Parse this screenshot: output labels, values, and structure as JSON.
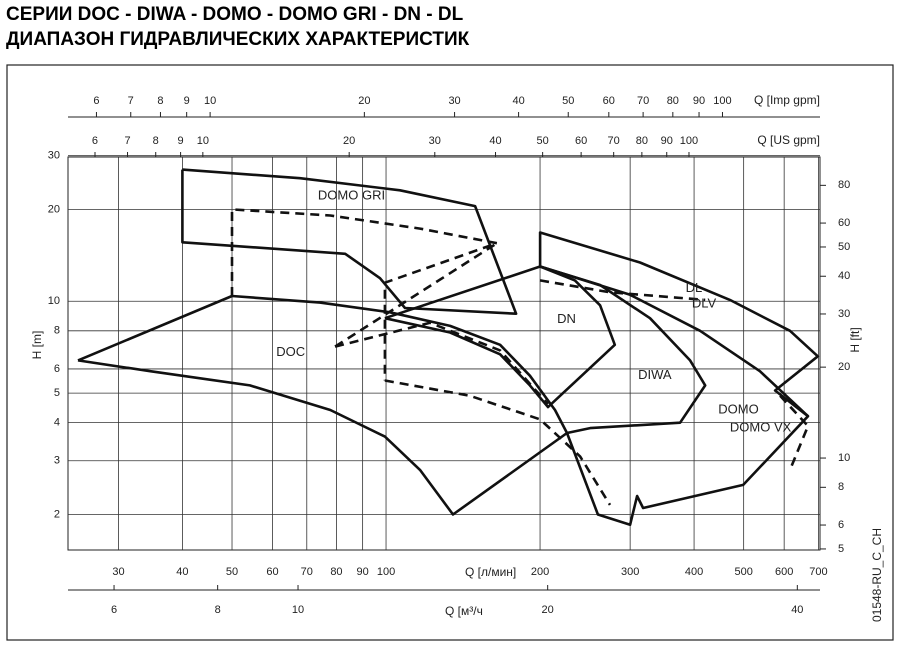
{
  "chart_data": {
    "type": "line",
    "title": "СЕРИИ DOC - DIWA - DOMO - DOMO GRI - DN - DL",
    "subtitle": "ДИАПАЗОН ГИДРАВЛИЧЕСКИХ ХАРАКТЕРИСТИК",
    "xlabel": "Q [л/мин]",
    "ylabel": "H [m]",
    "y2label": "H [ft]",
    "code": "01548-RU_C_CH",
    "log_x": true,
    "log_y": true,
    "grid": true,
    "color": "#111111",
    "xlim": [
      23.9,
      705
    ],
    "xticks": [
      30,
      40,
      50,
      60,
      70,
      80,
      90,
      100,
      200,
      300,
      400,
      500,
      600,
      700
    ],
    "ylim": [
      1.53,
      29.7
    ],
    "yticks": [
      2,
      3,
      4,
      5,
      6,
      8,
      10,
      20,
      30
    ],
    "y2lim": [
      4.96,
      99.3
    ],
    "y2ticks": [
      5,
      6,
      8,
      10,
      20,
      30,
      40,
      50,
      60,
      80
    ],
    "secondary_x_axes": [
      {
        "label": "Q [м³/ч",
        "position": "bottom",
        "xlim": [
          5.28,
          42.6
        ],
        "xticks": [
          6,
          8,
          10,
          20,
          40
        ]
      },
      {
        "label": "Q [US gpm]",
        "position": "top",
        "xlim": [
          5.28,
          186
        ],
        "xticks": [
          6,
          7,
          8,
          9,
          10,
          20,
          30,
          40,
          50,
          60,
          70,
          80,
          90,
          100
        ]
      },
      {
        "label": "Q [Imp gpm]",
        "position": "top",
        "xlim": [
          5.28,
          155
        ],
        "xticks": [
          6,
          7,
          8,
          9,
          10,
          20,
          30,
          40,
          50,
          60,
          70,
          80,
          90,
          100
        ]
      }
    ],
    "series": [
      {
        "style": "solid",
        "x": [
          40,
          67.9,
          106.5,
          149.3,
          179.6,
          108.9,
          97.3,
          83.2,
          40,
          40
        ],
        "values": [
          27.0,
          25.3,
          23.1,
          20.5,
          9.1,
          9.5,
          11.9,
          14.3,
          15.6,
          27.0
        ]
      },
      {
        "style": "solid",
        "x": [
          25.0,
          50,
          74.3,
          101.8,
          133.4,
          167.1,
          191.1,
          213.9,
          225.8,
          135.2,
          116.5,
          99.5,
          77.8,
          54.2,
          34.6,
          25.0
        ],
        "values": [
          6.4,
          10.4,
          9.9,
          9.2,
          8.3,
          7.2,
          5.7,
          4.4,
          3.7,
          2.0,
          2.8,
          3.6,
          4.4,
          5.3,
          5.9,
          6.4
        ]
      },
      {
        "style": "solid",
        "x": [
          99.5,
          200,
          234,
          262,
          280,
          207.3,
          191.1,
          167.1,
          133.4,
          99.5
        ],
        "values": [
          8.8,
          13.0,
          11.7,
          9.7,
          7.2,
          4.5,
          5.3,
          6.7,
          7.9,
          8.8
        ]
      },
      {
        "style": "solid",
        "x": [
          200,
          262,
          328,
          393,
          420.5,
          375.6,
          250.5,
          225.8
        ],
        "values": [
          13.0,
          11.3,
          8.8,
          6.4,
          5.3,
          4.0,
          3.84,
          3.7
        ]
      },
      {
        "style": "solid",
        "x": [
          200,
          200,
          313.6,
          470,
          616,
          698,
          576,
          668,
          499,
          318,
          309.6,
          300,
          259.5,
          225.8
        ],
        "values": [
          13.0,
          16.8,
          13.4,
          10.1,
          8.0,
          6.6,
          5.1,
          4.2,
          2.5,
          2.1,
          2.3,
          1.85,
          2.0,
          3.7
        ]
      },
      {
        "style": "solid",
        "x": [
          200,
          300,
          411,
          538,
          668
        ],
        "values": [
          13.0,
          10.5,
          8.0,
          5.9,
          4.2
        ]
      },
      {
        "style": "dashed",
        "x": [
          50,
          50,
          77.8,
          116.5,
          164.8,
          99.5,
          99.5
        ],
        "values": [
          10.4,
          20,
          19.1,
          17.3,
          15.5,
          11.5,
          5.5
        ]
      },
      {
        "style": "dashed",
        "x": [
          79.5,
          164.8
        ],
        "values": [
          7.1,
          15.5
        ]
      },
      {
        "style": "dashed",
        "x": [
          79.5,
          121.9,
          167.1,
          207.3
        ],
        "values": [
          7.1,
          8.5,
          6.9,
          4.6
        ]
      },
      {
        "style": "dashed",
        "x": [
          99.5,
          145.9,
          200,
          239.5,
          274
        ],
        "values": [
          5.5,
          4.9,
          4.1,
          3.1,
          2.15
        ]
      },
      {
        "style": "dashed",
        "x": [
          200,
          274,
          420.5
        ],
        "values": [
          11.7,
          10.7,
          10.1
        ]
      },
      {
        "style": "dashed",
        "x": [
          589,
          668,
          616
        ],
        "values": [
          4.9,
          3.9,
          2.8
        ]
      }
    ],
    "annotations": [
      {
        "text": "DOMO GRI",
        "x": 73.6,
        "y": 22.1
      },
      {
        "text": "DOC",
        "x": 61.0,
        "y": 6.8
      },
      {
        "text": "DN",
        "x": 216,
        "y": 8.7
      },
      {
        "text": "DIWA",
        "x": 311,
        "y": 5.7
      },
      {
        "text": "DL",
        "x": 385,
        "y": 11.0
      },
      {
        "text": "DLV",
        "x": 396,
        "y": 9.8
      },
      {
        "text": "DOMO",
        "x": 446,
        "y": 4.4
      },
      {
        "text": "DOMO VX",
        "x": 470,
        "y": 3.84
      }
    ]
  }
}
